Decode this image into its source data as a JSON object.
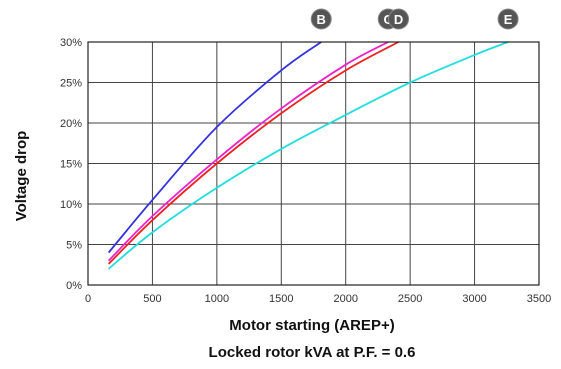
{
  "chart_data": {
    "type": "line",
    "title": "",
    "xlabel": "Motor starting (AREP+)",
    "xlabel2": "Locked rotor kVA at P.F. = 0.6",
    "ylabel": "Voltage drop",
    "xlim": [
      0,
      3500
    ],
    "ylim": [
      0,
      30
    ],
    "x_ticks": [
      0,
      500,
      1000,
      1500,
      2000,
      2500,
      3000,
      3500
    ],
    "x_tick_labels": [
      "0",
      "500",
      "1000",
      "1500",
      "2000",
      "2500",
      "3000",
      "3500"
    ],
    "y_ticks": [
      0,
      5,
      10,
      15,
      20,
      25,
      30
    ],
    "y_tick_labels": [
      "0%",
      "5%",
      "10%",
      "15%",
      "20%",
      "25%",
      "30%"
    ],
    "grid": true,
    "legend": "badges at top end of each curve",
    "series": [
      {
        "name": "B",
        "color": "#3333dd",
        "x": [
          160,
          500,
          1000,
          1500,
          1810
        ],
        "y": [
          4.0,
          10.5,
          19.5,
          26.5,
          30
        ]
      },
      {
        "name": "C",
        "color": "#ee22cc",
        "x": [
          160,
          500,
          1000,
          1500,
          2000,
          2330
        ],
        "y": [
          3.0,
          8.5,
          15.5,
          21.8,
          27.2,
          30
        ]
      },
      {
        "name": "D",
        "color": "#ee2222",
        "x": [
          160,
          500,
          1000,
          1500,
          2000,
          2410
        ],
        "y": [
          2.6,
          8.0,
          15.0,
          21.2,
          26.5,
          30
        ]
      },
      {
        "name": "E",
        "color": "#22dddd",
        "x": [
          160,
          500,
          1000,
          1500,
          2000,
          2500,
          3000,
          3260
        ],
        "y": [
          2.0,
          6.5,
          12.0,
          16.8,
          21.0,
          25.0,
          28.4,
          30
        ]
      }
    ]
  }
}
